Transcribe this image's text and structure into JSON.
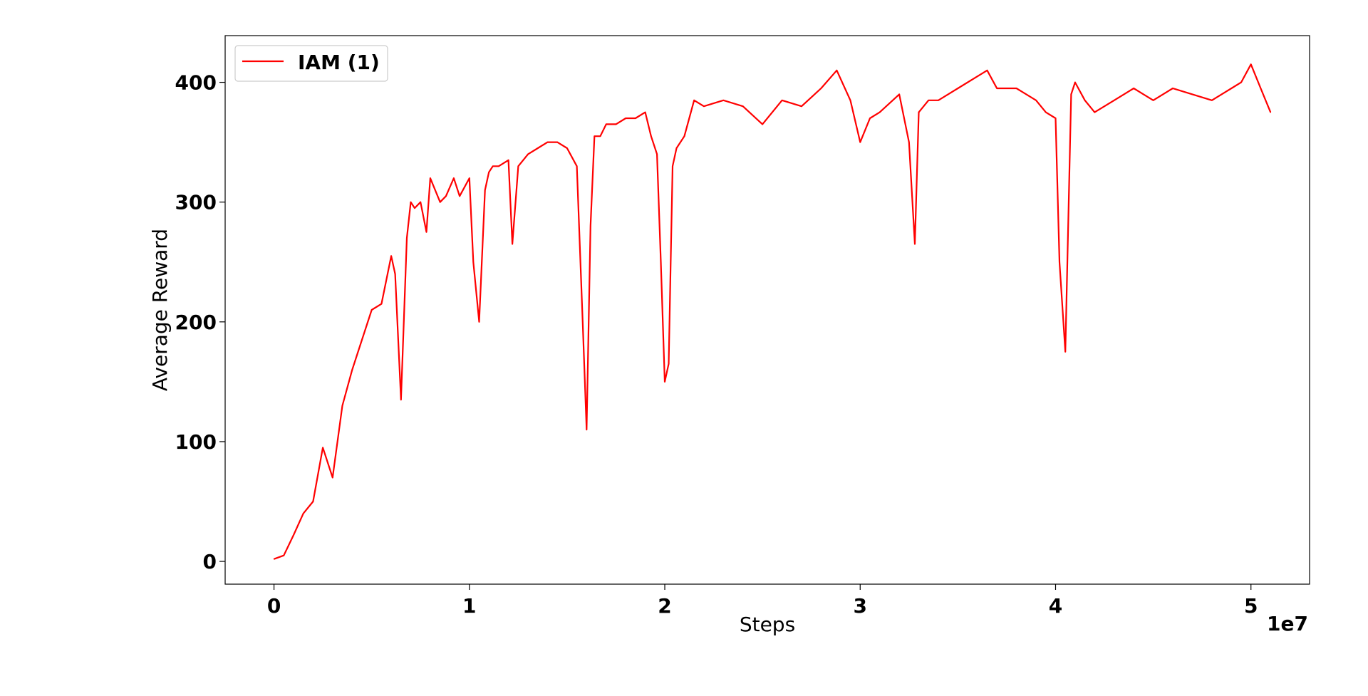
{
  "chart_data": {
    "type": "line",
    "xlabel": "Steps",
    "ylabel": "Average Reward",
    "x_multiplier_label": "1e7",
    "xlim": [
      -0.25,
      5.3
    ],
    "ylim": [
      -19,
      439
    ],
    "xticks": [
      0,
      1,
      2,
      3,
      4,
      5
    ],
    "xtick_labels": [
      "0",
      "1",
      "2",
      "3",
      "4",
      "5"
    ],
    "yticks": [
      0,
      100,
      200,
      300,
      400
    ],
    "ytick_labels": [
      "0",
      "100",
      "200",
      "300",
      "400"
    ],
    "grid": false,
    "legend": {
      "position": "top-left"
    },
    "series": [
      {
        "name": "IAM (1)",
        "color": "#ff0000",
        "x": [
          0,
          0.05,
          0.1,
          0.15,
          0.2,
          0.25,
          0.3,
          0.35,
          0.4,
          0.45,
          0.5,
          0.55,
          0.6,
          0.62,
          0.65,
          0.68,
          0.7,
          0.72,
          0.75,
          0.78,
          0.8,
          0.85,
          0.88,
          0.92,
          0.95,
          1.0,
          1.02,
          1.05,
          1.08,
          1.1,
          1.12,
          1.15,
          1.2,
          1.22,
          1.25,
          1.3,
          1.35,
          1.4,
          1.45,
          1.5,
          1.55,
          1.58,
          1.6,
          1.62,
          1.64,
          1.67,
          1.7,
          1.75,
          1.8,
          1.85,
          1.9,
          1.93,
          1.96,
          1.98,
          2.0,
          2.02,
          2.04,
          2.06,
          2.1,
          2.15,
          2.2,
          2.3,
          2.4,
          2.5,
          2.6,
          2.7,
          2.8,
          2.88,
          2.95,
          3.0,
          3.05,
          3.1,
          3.2,
          3.25,
          3.28,
          3.3,
          3.35,
          3.4,
          3.5,
          3.6,
          3.65,
          3.7,
          3.8,
          3.9,
          3.95,
          4.0,
          4.02,
          4.05,
          4.08,
          4.1,
          4.15,
          4.2,
          4.3,
          4.4,
          4.45,
          4.5,
          4.6,
          4.7,
          4.8,
          4.9,
          4.95,
          5.0,
          5.05,
          5.1
        ],
        "values": [
          2,
          5,
          22,
          40,
          50,
          95,
          70,
          130,
          160,
          185,
          210,
          215,
          255,
          240,
          135,
          270,
          300,
          295,
          300,
          275,
          320,
          300,
          305,
          320,
          305,
          320,
          250,
          200,
          310,
          325,
          330,
          330,
          335,
          265,
          330,
          340,
          345,
          350,
          350,
          345,
          330,
          200,
          110,
          280,
          355,
          355,
          365,
          365,
          370,
          370,
          375,
          355,
          340,
          250,
          150,
          165,
          330,
          345,
          355,
          385,
          380,
          385,
          380,
          365,
          385,
          380,
          395,
          410,
          385,
          350,
          370,
          375,
          390,
          350,
          265,
          375,
          385,
          385,
          395,
          405,
          410,
          395,
          395,
          385,
          375,
          370,
          250,
          175,
          390,
          400,
          385,
          375,
          385,
          395,
          390,
          385,
          395,
          390,
          385,
          395,
          400,
          415,
          395,
          375
        ]
      }
    ]
  }
}
